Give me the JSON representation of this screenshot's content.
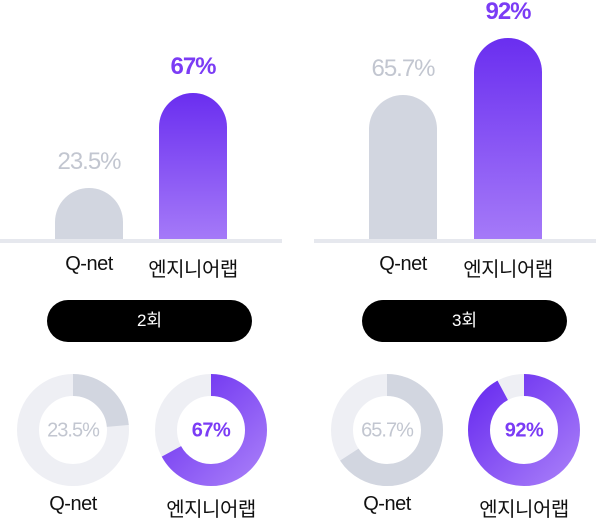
{
  "chart_data": [
    {
      "type": "bar",
      "group": "2회",
      "categories": [
        "Q-net",
        "엔지니어랩"
      ],
      "values": [
        23.5,
        67
      ],
      "labels": [
        "23.5%",
        "67%"
      ],
      "ylim": [
        0,
        100
      ]
    },
    {
      "type": "bar",
      "group": "3회",
      "categories": [
        "Q-net",
        "엔지니어랩"
      ],
      "values": [
        65.7,
        92
      ],
      "labels": [
        "65.7%",
        "92%"
      ],
      "ylim": [
        0,
        100
      ]
    },
    {
      "type": "pie",
      "group": "2회",
      "categories": [
        "Q-net",
        "엔지니어랩"
      ],
      "values": [
        23.5,
        67
      ],
      "labels": [
        "23.5%",
        "67%"
      ]
    },
    {
      "type": "pie",
      "group": "3회",
      "categories": [
        "Q-net",
        "엔지니어랩"
      ],
      "values": [
        65.7,
        92
      ],
      "labels": [
        "65.7%",
        "92%"
      ]
    }
  ],
  "groups": [
    "2회",
    "3회"
  ],
  "colors": {
    "qnet": "#d2d6e0",
    "engineerlab": "#7b3cf5",
    "track": "#eeeff4",
    "pill": "#000000"
  }
}
